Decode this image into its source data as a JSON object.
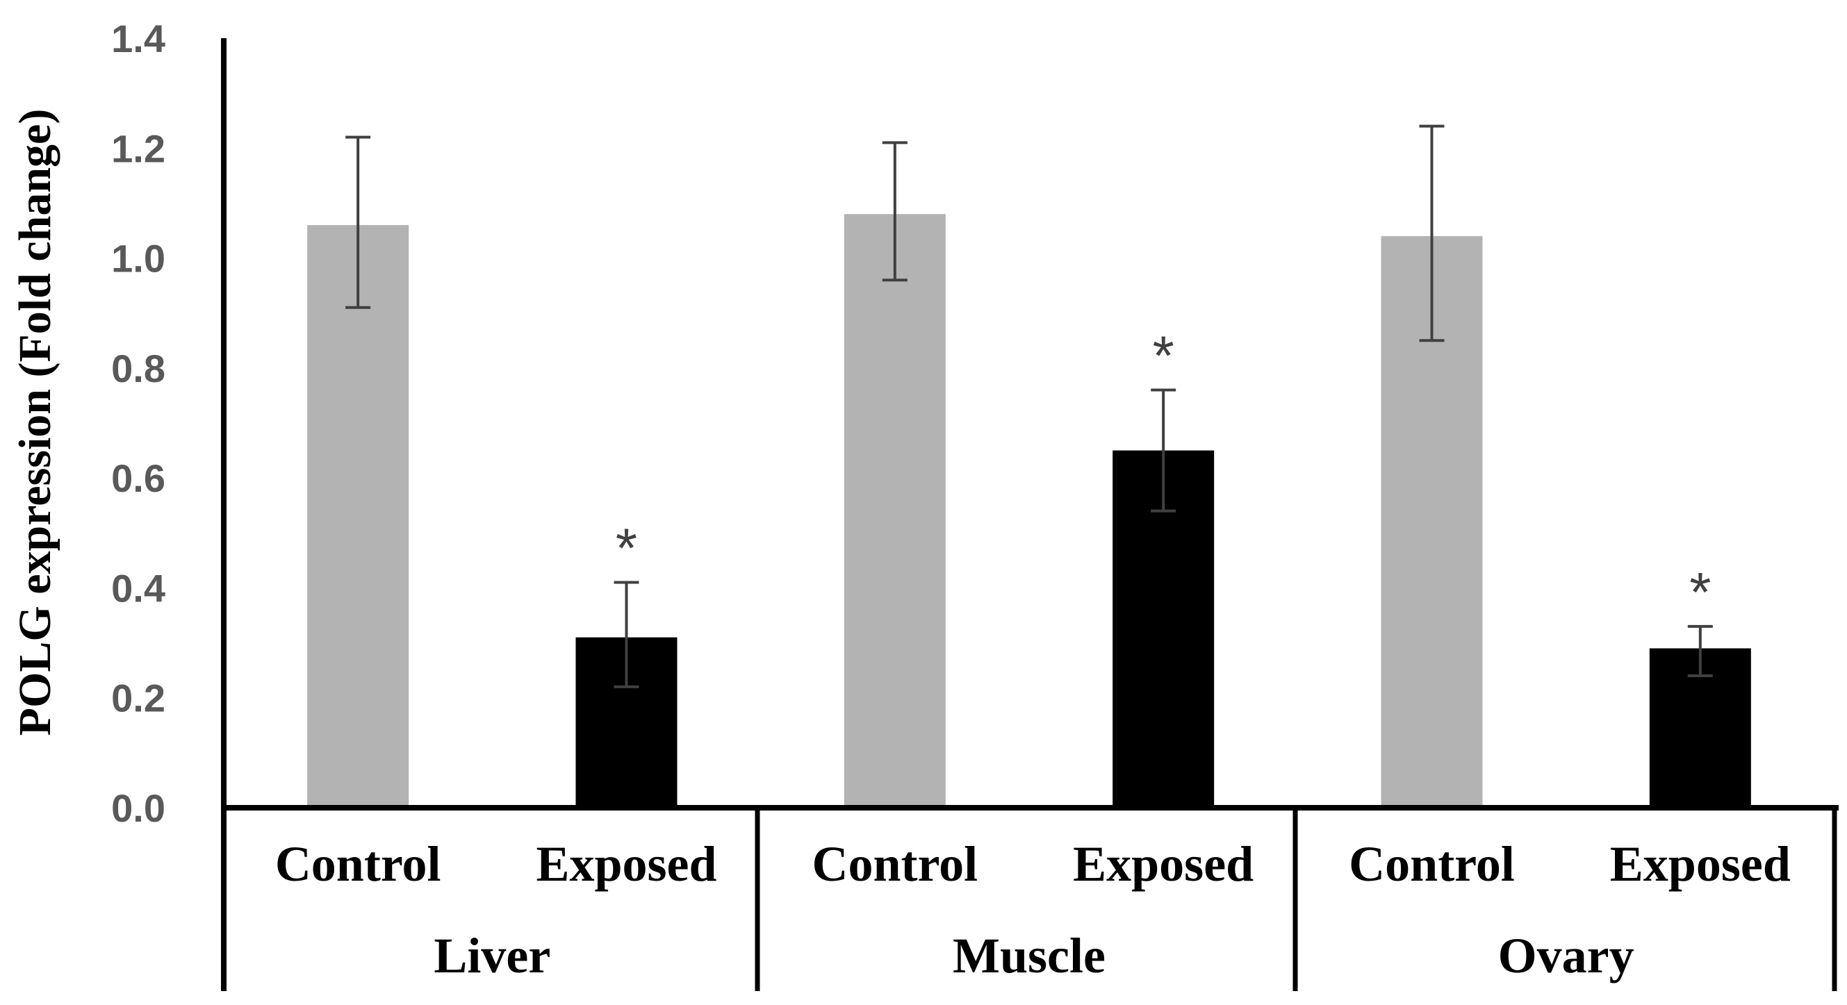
{
  "chart_data": {
    "type": "bar",
    "title": "",
    "xlabel": "",
    "ylabel": "POLG expression (Fold change)",
    "ylim": [
      0,
      1.4
    ],
    "yticks": [
      "0.0",
      "0.2",
      "0.4",
      "0.6",
      "0.8",
      "1.0",
      "1.2",
      "1.4"
    ],
    "groups": [
      "Liver",
      "Muscle",
      "Ovary"
    ],
    "conditions": [
      "Control",
      "Exposed"
    ],
    "bars": [
      {
        "group": "Liver",
        "condition": "Control",
        "value": 1.06,
        "err_low": 0.91,
        "err_high": 1.22,
        "color": "#b3b3b3",
        "mark": ""
      },
      {
        "group": "Liver",
        "condition": "Exposed",
        "value": 0.31,
        "err_low": 0.22,
        "err_high": 0.41,
        "color": "#000000",
        "mark": "*"
      },
      {
        "group": "Muscle",
        "condition": "Control",
        "value": 1.08,
        "err_low": 0.96,
        "err_high": 1.21,
        "color": "#b3b3b3",
        "mark": ""
      },
      {
        "group": "Muscle",
        "condition": "Exposed",
        "value": 0.65,
        "err_low": 0.54,
        "err_high": 0.76,
        "color": "#000000",
        "mark": "*"
      },
      {
        "group": "Ovary",
        "condition": "Control",
        "value": 1.04,
        "err_low": 0.85,
        "err_high": 1.24,
        "color": "#b3b3b3",
        "mark": ""
      },
      {
        "group": "Ovary",
        "condition": "Exposed",
        "value": 0.29,
        "err_low": 0.24,
        "err_high": 0.33,
        "color": "#000000",
        "mark": "*"
      }
    ],
    "grid": false,
    "legend": "none"
  }
}
